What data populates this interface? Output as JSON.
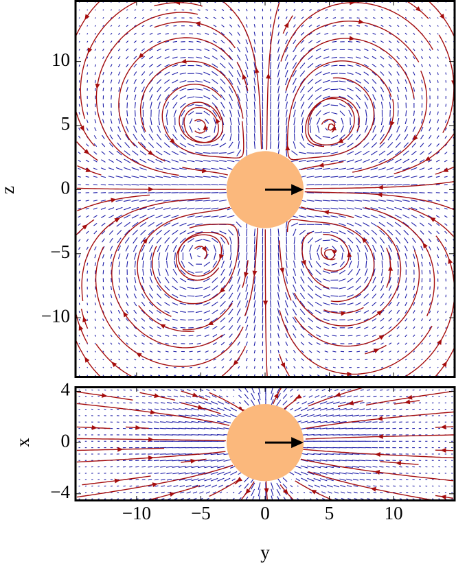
{
  "chart_data": [
    {
      "type": "streamplot",
      "ylabel": "z",
      "xlim": [
        -14.75,
        14.75
      ],
      "ylim": [
        -14.7,
        14.8
      ],
      "yticks": [
        {
          "value": -10,
          "label": "−10"
        },
        {
          "value": -5,
          "label": "−5"
        },
        0,
        5,
        10
      ],
      "sphere_radius": 3,
      "stream_color": "#a50d0d",
      "vector_color": "#1c1ca8",
      "sphere_color": "#fbb87c"
    },
    {
      "type": "streamplot",
      "ylabel": "x",
      "xlabel": "y",
      "xlim": [
        -14.75,
        14.75
      ],
      "ylim": [
        -4.6,
        4.4
      ],
      "xticks": [
        {
          "value": -10,
          "label": "−10"
        },
        {
          "value": -5,
          "label": "−5"
        },
        0,
        5,
        10
      ],
      "yticks": [
        {
          "value": -4,
          "label": "−4"
        },
        0,
        4
      ],
      "sphere_radius": 3,
      "stream_color": "#a50d0d",
      "vector_color": "#1c1ca8",
      "sphere_color": "#fbb87c"
    }
  ]
}
